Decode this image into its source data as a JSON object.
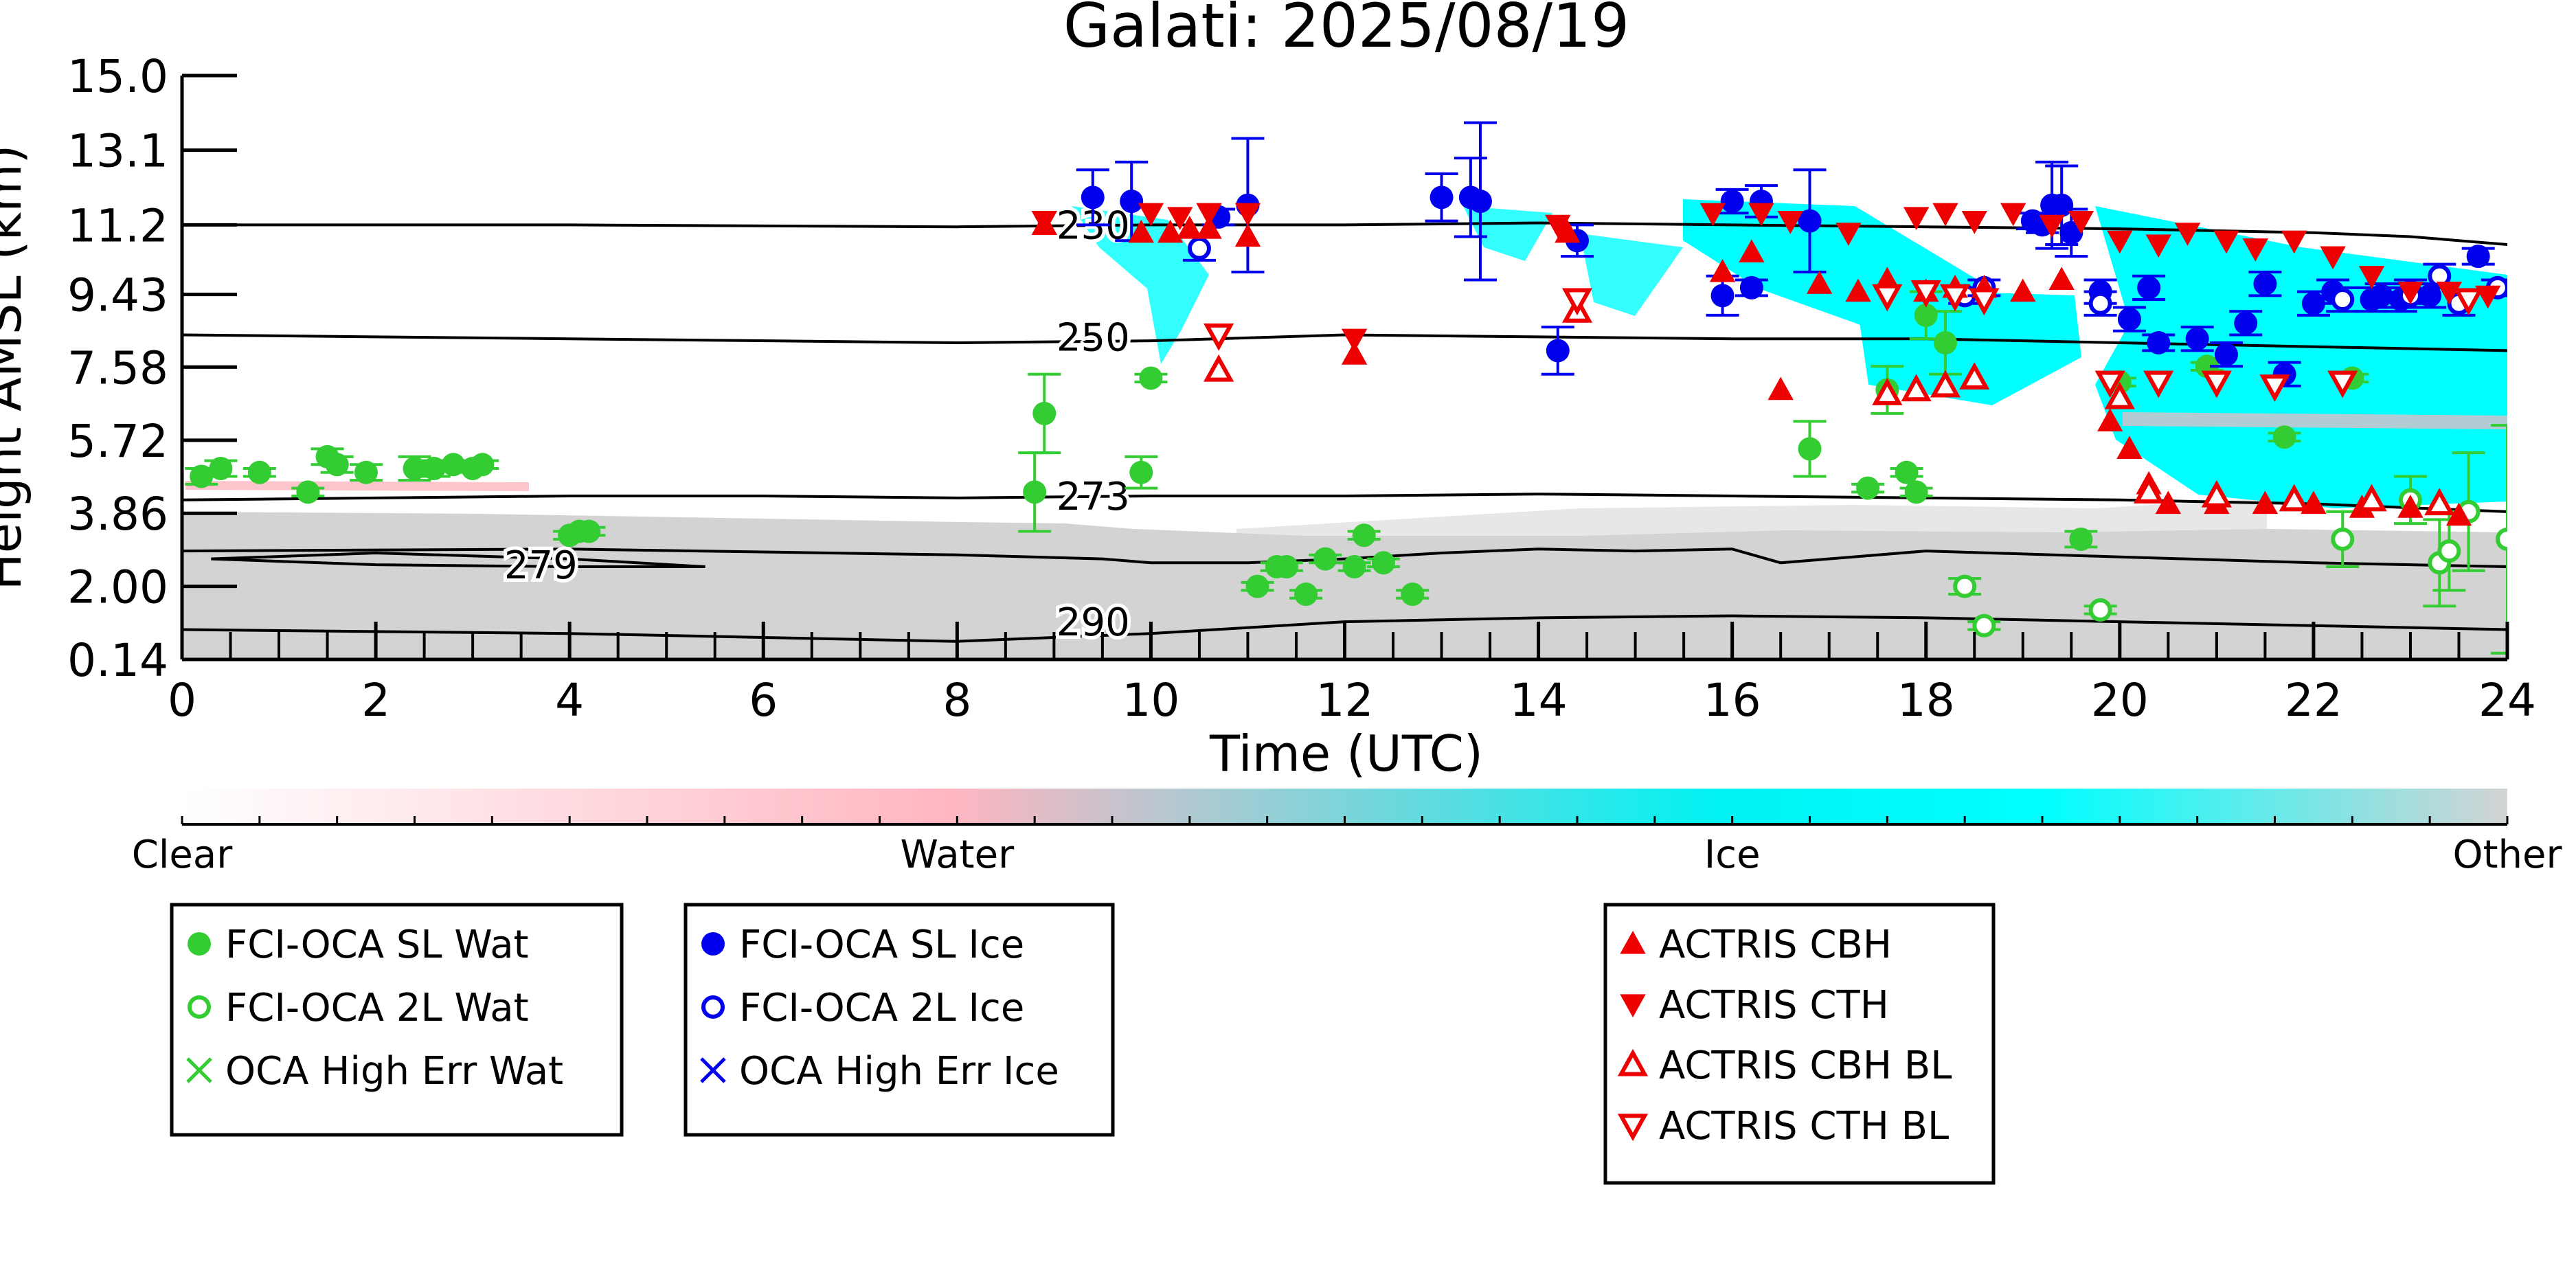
{
  "chart_data": {
    "type": "scatter",
    "title": "Galati: 2025/08/19",
    "xlabel": "Time (UTC)",
    "ylabel": "Height AMSL (km)",
    "xlim": [
      0,
      24
    ],
    "ylim": [
      0.14,
      15.0
    ],
    "x_ticks": [
      "0",
      "2",
      "4",
      "6",
      "8",
      "10",
      "12",
      "14",
      "16",
      "18",
      "20",
      "22",
      "24"
    ],
    "y_ticks": [
      "0.14",
      "2.00",
      "3.86",
      "5.72",
      "7.58",
      "9.43",
      "11.2",
      "13.1",
      "15.0"
    ],
    "grid": false,
    "colorbar": {
      "labels": [
        "Clear",
        "Water",
        "Ice",
        "Other"
      ],
      "colors": [
        "#ffffff",
        "#ffb6c1",
        "#00ffff",
        "#d3d3d3"
      ]
    },
    "contours": [
      {
        "label": "230",
        "x": [
          0,
          4,
          8,
          10,
          12,
          14,
          16,
          18,
          20,
          22,
          23,
          24
        ],
        "y": [
          11.2,
          11.2,
          11.15,
          11.2,
          11.2,
          11.25,
          11.2,
          11.15,
          11.1,
          11.0,
          10.9,
          10.7
        ]
      },
      {
        "label": "250",
        "x": [
          0,
          4,
          8,
          10,
          12,
          14,
          16,
          18,
          20,
          22,
          24
        ],
        "y": [
          8.4,
          8.3,
          8.2,
          8.25,
          8.4,
          8.35,
          8.3,
          8.3,
          8.2,
          8.1,
          8.0
        ]
      },
      {
        "label": "273",
        "x": [
          0,
          2,
          4,
          6,
          8,
          10,
          12,
          14,
          16,
          18,
          20,
          22,
          24
        ],
        "y": [
          4.2,
          4.25,
          4.3,
          4.3,
          4.25,
          4.3,
          4.3,
          4.35,
          4.3,
          4.25,
          4.2,
          4.1,
          3.9
        ]
      },
      {
        "label": "279",
        "x": [
          0.3,
          2,
          4,
          5.4,
          4,
          2,
          0.3
        ],
        "y": [
          2.7,
          2.85,
          2.7,
          2.5,
          2.5,
          2.55,
          2.7
        ]
      },
      {
        "label": "",
        "x": [
          0,
          4,
          8,
          9.5,
          10,
          11,
          12,
          13,
          14,
          15,
          16,
          16.5,
          18,
          20,
          22,
          24
        ],
        "y": [
          2.9,
          2.95,
          2.8,
          2.7,
          2.6,
          2.6,
          2.7,
          2.85,
          2.95,
          2.9,
          2.95,
          2.6,
          2.9,
          2.75,
          2.6,
          2.5
        ]
      },
      {
        "label": "290",
        "x": [
          0,
          2,
          4,
          6,
          8,
          10,
          12,
          14,
          16,
          18,
          20,
          22,
          24
        ],
        "y": [
          0.9,
          0.85,
          0.8,
          0.7,
          0.6,
          0.8,
          1.1,
          1.2,
          1.25,
          1.2,
          1.1,
          1.0,
          0.9
        ]
      }
    ],
    "series": [
      {
        "name": "FCI-OCA SL Wat",
        "marker": "circle-filled",
        "color": "#33cc33",
        "points": [
          [
            0.2,
            4.8
          ],
          [
            0.4,
            5.0
          ],
          [
            0.8,
            4.9
          ],
          [
            1.3,
            4.4
          ],
          [
            1.5,
            5.3
          ],
          [
            1.6,
            5.1
          ],
          [
            1.9,
            4.9
          ],
          [
            2.4,
            5.0
          ],
          [
            2.6,
            5.0
          ],
          [
            2.8,
            5.1
          ],
          [
            3.0,
            5.0
          ],
          [
            3.1,
            5.1
          ],
          [
            4.0,
            3.3
          ],
          [
            4.1,
            3.4
          ],
          [
            4.2,
            3.4
          ],
          [
            8.8,
            4.4
          ],
          [
            8.9,
            6.4
          ],
          [
            9.9,
            4.9
          ],
          [
            10.0,
            7.3
          ],
          [
            11.1,
            2.0
          ],
          [
            11.3,
            2.5
          ],
          [
            11.4,
            2.5
          ],
          [
            11.6,
            1.8
          ],
          [
            11.8,
            2.7
          ],
          [
            12.1,
            2.5
          ],
          [
            12.2,
            3.3
          ],
          [
            12.4,
            2.6
          ],
          [
            12.7,
            1.8
          ],
          [
            16.8,
            5.5
          ],
          [
            17.4,
            4.5
          ],
          [
            17.6,
            7.0
          ],
          [
            17.8,
            4.9
          ],
          [
            17.9,
            4.4
          ],
          [
            18.0,
            8.9
          ],
          [
            18.2,
            8.2
          ],
          [
            19.6,
            3.2
          ],
          [
            20.0,
            7.2
          ],
          [
            20.9,
            7.6
          ],
          [
            21.7,
            5.8
          ],
          [
            22.4,
            7.3
          ]
        ],
        "err": [
          0.2,
          0.2,
          0.1,
          0.1,
          0.2,
          0.2,
          0.2,
          0.3,
          0.2,
          0.1,
          0.1,
          0.1,
          0.1,
          0.1,
          0.1,
          1.0,
          1.0,
          0.4,
          0.1,
          0.1,
          0.1,
          0.1,
          0.1,
          0.1,
          0.1,
          0.1,
          0.1,
          0.1,
          0.7,
          0.1,
          0.6,
          0.1,
          0.1,
          0.6,
          0.8,
          0.2,
          0.1,
          0.1,
          0.1,
          0.1
        ]
      },
      {
        "name": "FCI-OCA 2L Wat",
        "marker": "circle-open",
        "color": "#33cc33",
        "points": [
          [
            18.4,
            2.0
          ],
          [
            18.6,
            1.0
          ],
          [
            19.8,
            1.4
          ],
          [
            22.3,
            3.2
          ],
          [
            23.0,
            4.2
          ],
          [
            23.3,
            2.6
          ],
          [
            23.4,
            2.9
          ],
          [
            23.6,
            3.9
          ],
          [
            24.0,
            3.2
          ]
        ],
        "err": [
          0.2,
          0.1,
          0.1,
          0.7,
          0.6,
          1.1,
          1.0,
          1.5,
          2.9
        ]
      },
      {
        "name": "OCA High Err Wat",
        "marker": "x",
        "color": "#33cc33",
        "points": [],
        "err": []
      },
      {
        "name": "FCI-OCA SL Ice",
        "marker": "circle-filled",
        "color": "#0000ee",
        "points": [
          [
            9.4,
            11.9
          ],
          [
            9.8,
            11.8
          ],
          [
            10.7,
            11.4
          ],
          [
            11.0,
            11.7
          ],
          [
            13.0,
            11.9
          ],
          [
            13.3,
            11.9
          ],
          [
            13.4,
            11.8
          ],
          [
            14.2,
            8.0
          ],
          [
            14.4,
            10.8
          ],
          [
            15.9,
            9.4
          ],
          [
            16.0,
            11.8
          ],
          [
            16.2,
            9.6
          ],
          [
            16.3,
            11.8
          ],
          [
            16.8,
            11.3
          ],
          [
            19.1,
            11.3
          ],
          [
            19.2,
            11.2
          ],
          [
            19.3,
            11.7
          ],
          [
            19.4,
            11.7
          ],
          [
            19.5,
            11.0
          ],
          [
            19.8,
            9.5
          ],
          [
            20.1,
            8.8
          ],
          [
            20.3,
            9.6
          ],
          [
            20.4,
            8.2
          ],
          [
            20.8,
            8.3
          ],
          [
            21.1,
            7.9
          ],
          [
            21.3,
            8.7
          ],
          [
            21.5,
            9.7
          ],
          [
            21.7,
            7.4
          ],
          [
            22.0,
            9.2
          ],
          [
            22.2,
            9.5
          ],
          [
            22.6,
            9.3
          ],
          [
            22.7,
            9.4
          ],
          [
            22.9,
            9.3
          ],
          [
            23.0,
            9.5
          ],
          [
            23.2,
            9.4
          ],
          [
            23.7,
            10.4
          ]
        ],
        "err": [
          0.7,
          1.0,
          0.2,
          1.7,
          0.6,
          1.0,
          2.0,
          0.6,
          0.4,
          0.5,
          0.3,
          0.2,
          0.4,
          1.3,
          0.2,
          0.2,
          1.1,
          1.0,
          0.6,
          0.3,
          0.3,
          0.3,
          0.2,
          0.3,
          0.3,
          0.3,
          0.3,
          0.3,
          0.3,
          0.3,
          0.3,
          0.3,
          0.3,
          0.3,
          0.3,
          0.2
        ]
      },
      {
        "name": "FCI-OCA 2L Ice",
        "marker": "circle-open",
        "color": "#0000ee",
        "points": [
          [
            10.5,
            10.6
          ],
          [
            18.4,
            9.4
          ],
          [
            18.6,
            9.6
          ],
          [
            19.8,
            9.2
          ],
          [
            22.3,
            9.3
          ],
          [
            23.0,
            9.4
          ],
          [
            23.3,
            9.9
          ],
          [
            23.5,
            9.2
          ],
          [
            23.9,
            9.6
          ]
        ],
        "err": [
          0.3,
          0.2,
          0.2,
          0.3,
          0.3,
          0.3,
          0.3,
          0.3,
          0.2
        ]
      },
      {
        "name": "OCA High Err Ice",
        "marker": "x",
        "color": "#0000ee",
        "points": [],
        "err": []
      },
      {
        "name": "ACTRIS CBH",
        "marker": "triangle-up",
        "color": "#ee0000",
        "points": [
          [
            8.9,
            11.2
          ],
          [
            9.9,
            11.0
          ],
          [
            10.2,
            11.0
          ],
          [
            10.4,
            11.1
          ],
          [
            10.6,
            11.1
          ],
          [
            11.0,
            10.9
          ],
          [
            12.1,
            7.9
          ],
          [
            14.3,
            11.0
          ],
          [
            15.9,
            10.0
          ],
          [
            16.2,
            10.5
          ],
          [
            16.5,
            7.0
          ],
          [
            16.9,
            9.7
          ],
          [
            17.3,
            9.5
          ],
          [
            17.6,
            9.8
          ],
          [
            18.0,
            9.5
          ],
          [
            18.3,
            9.6
          ],
          [
            18.6,
            9.6
          ],
          [
            19.0,
            9.5
          ],
          [
            19.4,
            9.8
          ],
          [
            19.9,
            6.2
          ],
          [
            20.1,
            5.5
          ],
          [
            20.3,
            4.6
          ],
          [
            20.5,
            4.1
          ],
          [
            21.0,
            4.1
          ],
          [
            21.5,
            4.1
          ],
          [
            22.0,
            4.1
          ],
          [
            22.5,
            4.0
          ],
          [
            23.0,
            4.0
          ],
          [
            23.5,
            3.8
          ]
        ],
        "err": []
      },
      {
        "name": "ACTRIS CTH",
        "marker": "triangle-down",
        "color": "#ee0000",
        "points": [
          [
            8.9,
            11.3
          ],
          [
            10.0,
            11.5
          ],
          [
            10.3,
            11.4
          ],
          [
            10.6,
            11.5
          ],
          [
            11.0,
            11.5
          ],
          [
            12.1,
            8.3
          ],
          [
            14.2,
            11.2
          ],
          [
            15.8,
            11.5
          ],
          [
            16.3,
            11.5
          ],
          [
            16.6,
            11.3
          ],
          [
            17.2,
            11.0
          ],
          [
            17.9,
            11.4
          ],
          [
            18.2,
            11.5
          ],
          [
            18.5,
            11.3
          ],
          [
            18.9,
            11.5
          ],
          [
            19.3,
            11.2
          ],
          [
            19.6,
            11.3
          ],
          [
            20.0,
            10.8
          ],
          [
            20.4,
            10.7
          ],
          [
            20.7,
            11.0
          ],
          [
            21.1,
            10.8
          ],
          [
            21.4,
            10.6
          ],
          [
            21.8,
            10.8
          ],
          [
            22.2,
            10.4
          ],
          [
            22.6,
            9.9
          ],
          [
            23.0,
            9.5
          ],
          [
            23.4,
            9.5
          ],
          [
            23.8,
            9.4
          ]
        ],
        "err": []
      },
      {
        "name": "ACTRIS CBH BL",
        "marker": "triangle-up-open",
        "color": "#ee0000",
        "points": [
          [
            10.7,
            7.5
          ],
          [
            14.4,
            9.0
          ],
          [
            17.6,
            6.9
          ],
          [
            17.9,
            7.0
          ],
          [
            18.2,
            7.1
          ],
          [
            18.5,
            7.3
          ],
          [
            20.0,
            6.8
          ],
          [
            20.3,
            4.4
          ],
          [
            21.0,
            4.3
          ],
          [
            21.8,
            4.2
          ],
          [
            22.6,
            4.2
          ],
          [
            23.3,
            4.1
          ]
        ],
        "err": []
      },
      {
        "name": "ACTRIS CTH BL",
        "marker": "triangle-down-open",
        "color": "#ee0000",
        "points": [
          [
            10.7,
            8.4
          ],
          [
            14.4,
            9.3
          ],
          [
            17.6,
            9.4
          ],
          [
            18.0,
            9.5
          ],
          [
            18.3,
            9.4
          ],
          [
            18.6,
            9.3
          ],
          [
            19.9,
            7.2
          ],
          [
            20.4,
            7.2
          ],
          [
            21.0,
            7.2
          ],
          [
            21.6,
            7.1
          ],
          [
            22.3,
            7.2
          ],
          [
            23.6,
            9.3
          ]
        ],
        "err": []
      }
    ],
    "legends": [
      [
        "FCI-OCA SL Wat",
        "FCI-OCA 2L Wat",
        "OCA High Err Wat"
      ],
      [
        "FCI-OCA SL Ice",
        "FCI-OCA 2L Ice",
        "OCA High Err Ice"
      ],
      [
        "ACTRIS CBH",
        "ACTRIS CTH",
        "ACTRIS CBH BL",
        "ACTRIS CTH BL"
      ]
    ]
  }
}
